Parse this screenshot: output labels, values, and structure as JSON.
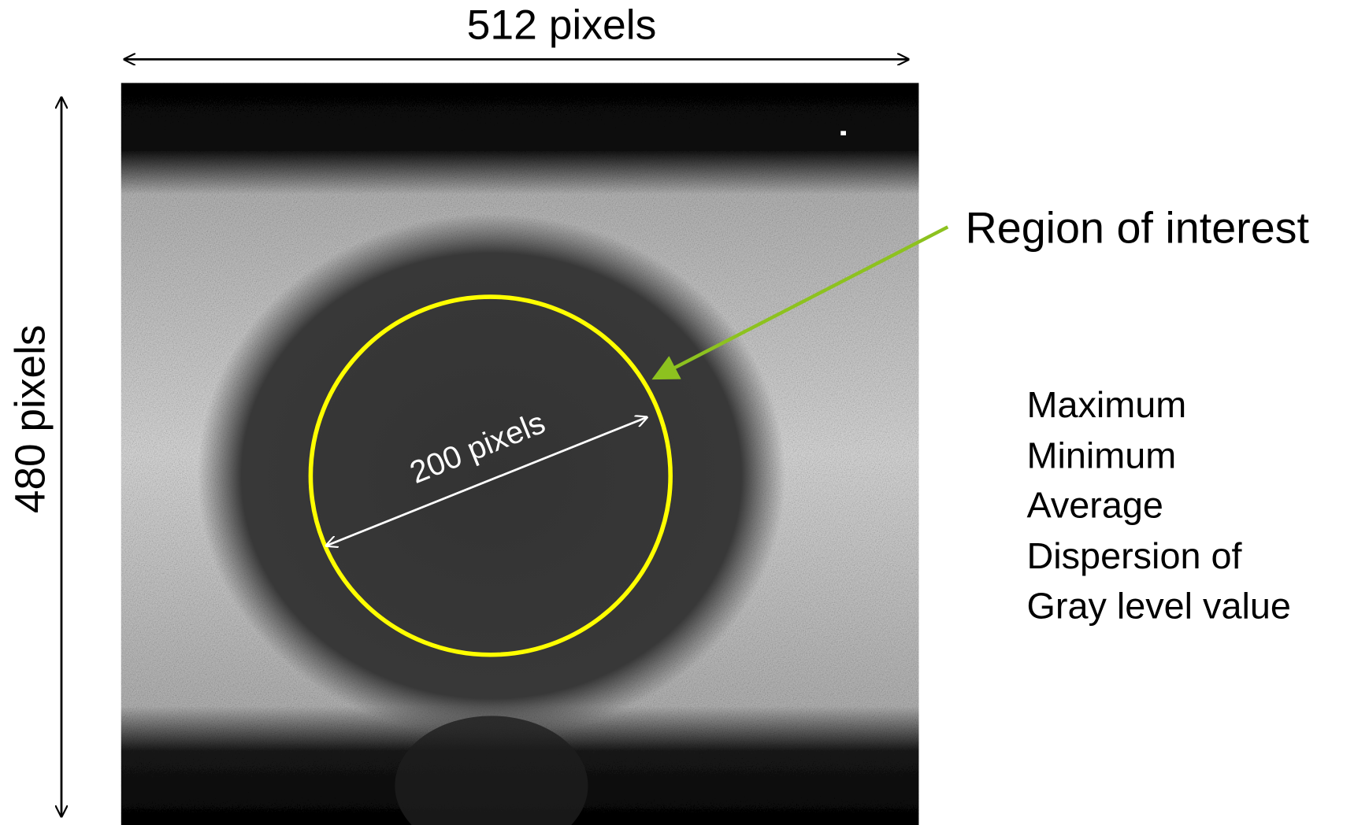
{
  "width_label": "512 pixels",
  "height_label": "480 pixels",
  "diameter_label": "200 pixels",
  "roi_label": "Region of interest",
  "stats": [
    "Maximum",
    "Minimum",
    "Average",
    "Dispersion of",
    "Gray level value"
  ]
}
